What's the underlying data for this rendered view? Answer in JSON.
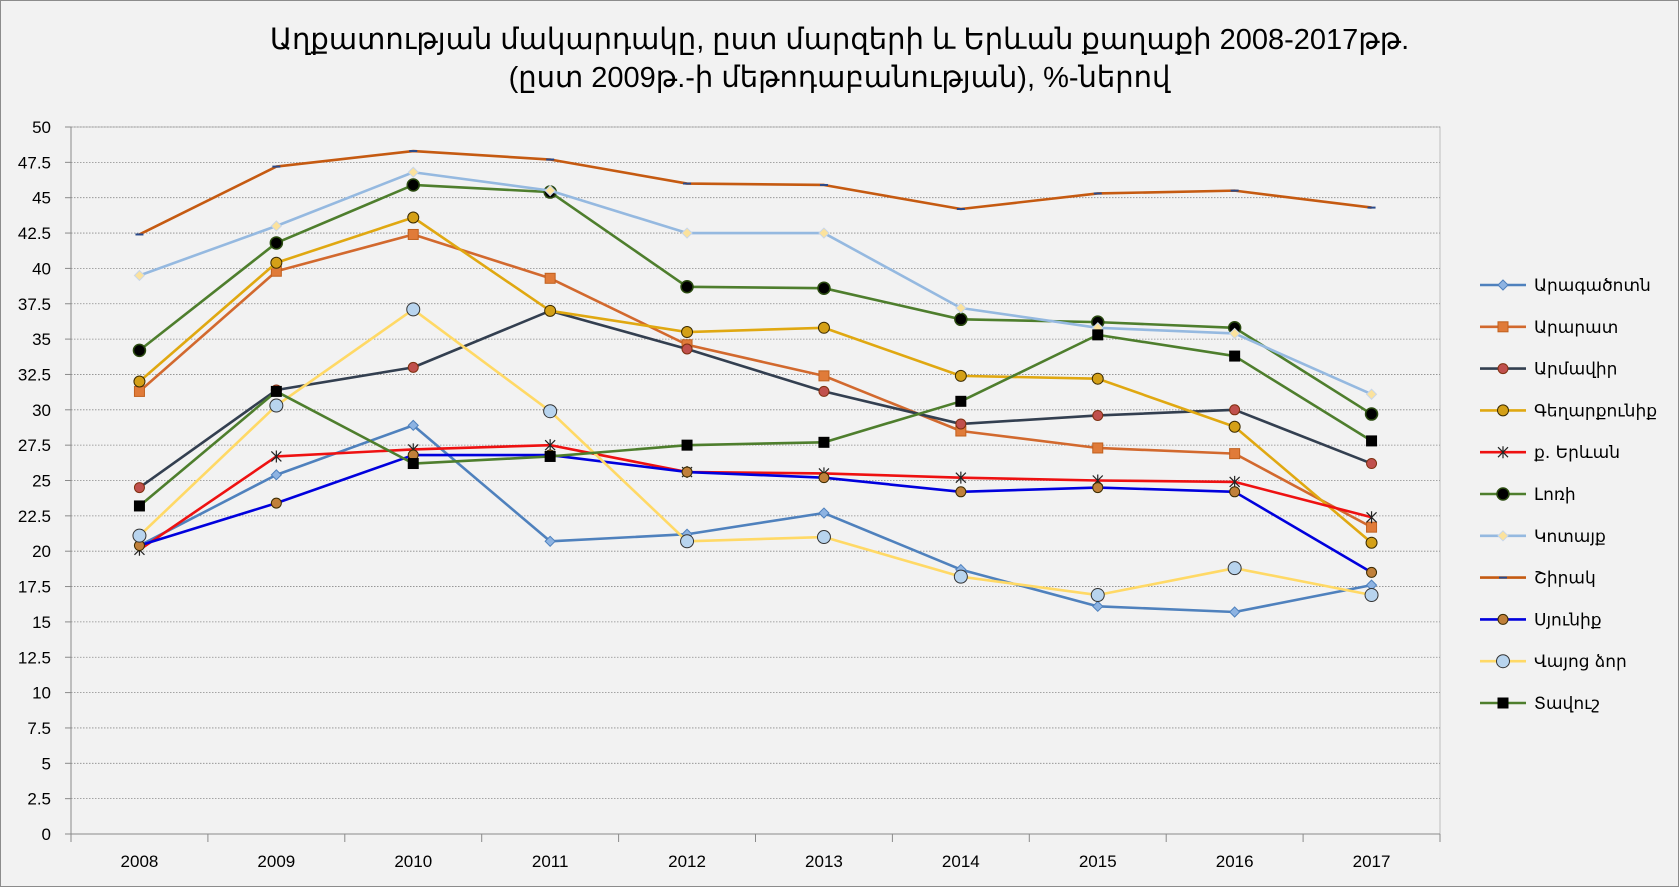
{
  "chart_data": {
    "type": "line",
    "title_line1": "Աղքատության մակարդակը, ըստ մարզերի և Երևան քաղաքի 2008-2017թթ.",
    "title_line2": "(ըստ 2009թ.-ի մեթոդաբանության), %-ներով",
    "x": [
      "2008",
      "2009",
      "2010",
      "2011",
      "2012",
      "2013",
      "2014",
      "2015",
      "2016",
      "2017"
    ],
    "ylim": [
      0,
      50
    ],
    "ytick_step": 2.5,
    "grid": true,
    "legend_position": "right",
    "series": [
      {
        "name": "Արագածոտն",
        "color": "#4f81bd",
        "marker": "diamond",
        "values": [
          20.4,
          25.4,
          28.9,
          20.7,
          21.2,
          22.7,
          18.7,
          16.1,
          15.7,
          17.6
        ]
      },
      {
        "name": "Արարատ",
        "color": "#d2692e",
        "marker": "square",
        "values": [
          31.3,
          39.8,
          42.4,
          39.3,
          34.6,
          32.4,
          28.5,
          27.3,
          26.9,
          21.7
        ]
      },
      {
        "name": "Արմավիր",
        "color": "#333f50",
        "marker": "circle-brown",
        "values": [
          24.5,
          31.4,
          33.0,
          37.0,
          34.3,
          31.3,
          29.0,
          29.6,
          30.0,
          26.2
        ]
      },
      {
        "name": "Գեղարքունիք",
        "color": "#e0a811",
        "marker": "circle-gold",
        "values": [
          32.0,
          40.4,
          43.6,
          37.0,
          35.5,
          35.8,
          32.4,
          32.2,
          28.8,
          20.6
        ]
      },
      {
        "name": "ք. Երևան",
        "color": "#ee1111",
        "marker": "star",
        "values": [
          20.1,
          26.7,
          27.2,
          27.5,
          25.6,
          25.5,
          25.2,
          25.0,
          24.9,
          22.4
        ]
      },
      {
        "name": "Լոռի",
        "color": "#4e7e2d",
        "marker": "circle-black",
        "values": [
          34.2,
          41.8,
          45.9,
          45.4,
          38.7,
          38.6,
          36.4,
          36.2,
          35.8,
          29.7
        ]
      },
      {
        "name": "Կոտայք",
        "color": "#95b9e0",
        "marker": "diamond-light",
        "values": [
          39.5,
          43.0,
          46.8,
          45.5,
          42.5,
          42.5,
          37.2,
          35.8,
          35.4,
          31.1
        ]
      },
      {
        "name": "Շիրակ",
        "color": "#c55a11",
        "marker": "dash",
        "values": [
          42.4,
          47.2,
          48.3,
          47.7,
          46.0,
          45.9,
          44.2,
          45.3,
          45.5,
          44.3
        ]
      },
      {
        "name": "Սյունիք",
        "color": "#0000dd",
        "marker": "circle-small",
        "values": [
          20.4,
          23.4,
          26.8,
          26.8,
          25.6,
          25.2,
          24.2,
          24.5,
          24.2,
          18.5
        ]
      },
      {
        "name": "Վայոց ձոր",
        "color": "#ffd966",
        "marker": "circle-blue",
        "values": [
          21.1,
          30.3,
          37.1,
          29.9,
          20.7,
          21.0,
          18.2,
          16.9,
          18.8,
          16.9
        ]
      },
      {
        "name": "Տավուշ",
        "color": "#4e7e2d",
        "marker": "square-black",
        "values": [
          23.2,
          31.3,
          26.2,
          26.7,
          27.5,
          27.7,
          30.6,
          35.3,
          33.8,
          27.8
        ]
      }
    ]
  }
}
